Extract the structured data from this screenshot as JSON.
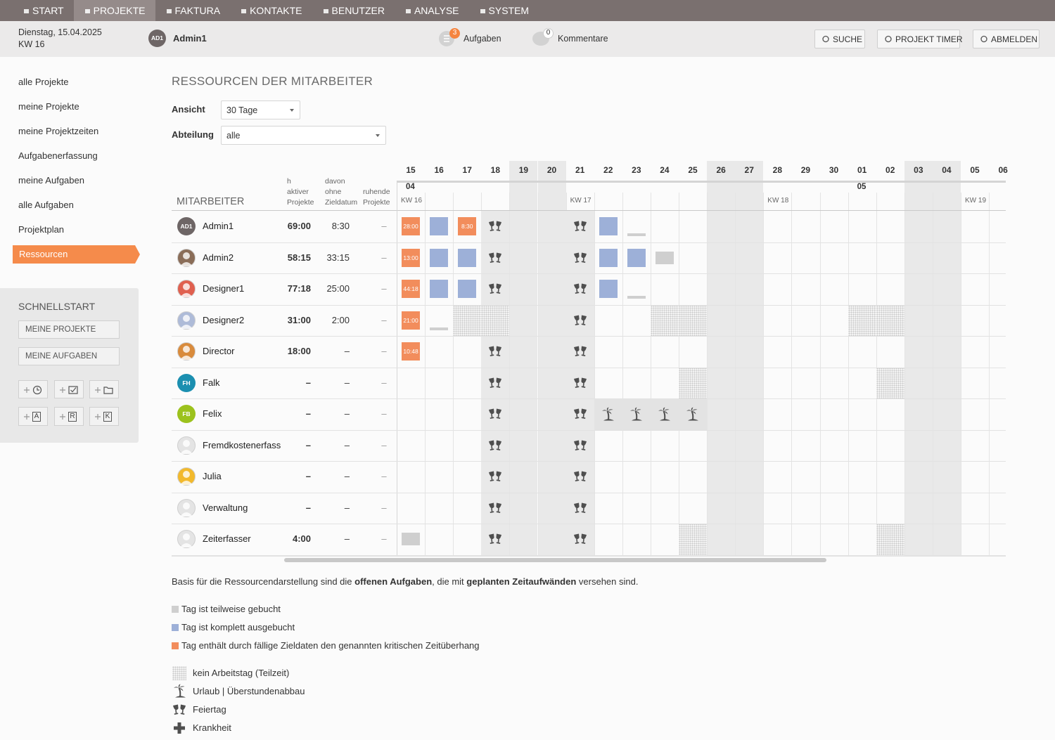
{
  "nav": {
    "items": [
      "START",
      "PROJEKTE",
      "FAKTURA",
      "KONTAKTE",
      "BENUTZER",
      "ANALYSE",
      "SYSTEM"
    ],
    "active": "PROJEKTE"
  },
  "header": {
    "date": "Dienstag, 15.04.2025",
    "week": "KW 16",
    "avatar": "AD1",
    "user": "Admin1",
    "tasks": {
      "count": 3,
      "label": "Aufgaben"
    },
    "comments": {
      "count": 0,
      "label": "Kommentare"
    },
    "buttons": [
      "SUCHE",
      "PROJEKT TIMER",
      "ABMELDEN"
    ]
  },
  "sidebar": {
    "links": [
      "alle Projekte",
      "meine Projekte",
      "meine Projektzeiten",
      "Aufgabenerfassung",
      "meine Aufgaben",
      "alle Aufgaben",
      "Projektplan",
      "Ressourcen"
    ],
    "active": "Ressourcen",
    "quickstart": {
      "title": "SCHNELLSTART",
      "buttons": [
        "MEINE PROJEKTE",
        "MEINE AUFGABEN"
      ],
      "letters": [
        "A",
        "R",
        "K"
      ]
    }
  },
  "main": {
    "title": "RESSOURCEN DER MITARBEITER",
    "filters": [
      {
        "label": "Ansicht",
        "value": "30 Tage"
      },
      {
        "label": "Abteilung",
        "value": "alle"
      }
    ],
    "table": {
      "employee_header": "MITARBEITER",
      "columns": [
        [
          "h",
          "aktiver",
          "Projekte"
        ],
        [
          "davon",
          "ohne",
          "Zieldatum"
        ],
        [
          "ruhende",
          "Projekte"
        ]
      ],
      "days": [
        {
          "d": "15",
          "off": false,
          "month": "04",
          "kw": "KW 16"
        },
        {
          "d": "16",
          "off": false
        },
        {
          "d": "17",
          "off": false
        },
        {
          "d": "18",
          "off": false
        },
        {
          "d": "19",
          "off": true
        },
        {
          "d": "20",
          "off": true
        },
        {
          "d": "21",
          "off": false,
          "kw": "KW 17"
        },
        {
          "d": "22",
          "off": false
        },
        {
          "d": "23",
          "off": false
        },
        {
          "d": "24",
          "off": false
        },
        {
          "d": "25",
          "off": false
        },
        {
          "d": "26",
          "off": true
        },
        {
          "d": "27",
          "off": true
        },
        {
          "d": "28",
          "off": false,
          "kw": "KW 18"
        },
        {
          "d": "29",
          "off": false
        },
        {
          "d": "30",
          "off": false
        },
        {
          "d": "01",
          "off": false,
          "month": "05"
        },
        {
          "d": "02",
          "off": false
        },
        {
          "d": "03",
          "off": true
        },
        {
          "d": "04",
          "off": true
        },
        {
          "d": "05",
          "off": false,
          "kw": "KW 19"
        },
        {
          "d": "06",
          "off": false
        }
      ],
      "rows": [
        {
          "name": "Admin1",
          "avatar": {
            "initials": "AD1",
            "color": "#6e6666"
          },
          "hours": "69:00",
          "no_deadline": "8:30",
          "dormant": "–",
          "cells": [
            {
              "kind": "critical",
              "label": "28:00"
            },
            "full",
            {
              "kind": "critical",
              "label": "8:30"
            },
            "holiday",
            null,
            null,
            "holiday",
            "full",
            "low",
            null,
            null,
            null,
            null,
            null,
            null,
            null,
            null,
            null,
            null,
            null,
            null,
            null
          ]
        },
        {
          "name": "Admin2",
          "avatar": {
            "color": "#8a6d58"
          },
          "hours": "58:15",
          "no_deadline": "33:15",
          "dormant": "–",
          "cells": [
            {
              "kind": "critical",
              "label": "13:00"
            },
            "full",
            "full",
            "holiday",
            null,
            null,
            "holiday",
            "full",
            "full",
            "partial",
            null,
            null,
            null,
            null,
            null,
            null,
            null,
            null,
            null,
            null,
            null,
            null
          ]
        },
        {
          "name": "Designer1",
          "avatar": {
            "color": "#e0604f"
          },
          "hours": "77:18",
          "no_deadline": "25:00",
          "dormant": "–",
          "cells": [
            {
              "kind": "critical",
              "label": "44:18"
            },
            "full",
            "full",
            "holiday",
            null,
            null,
            "holiday",
            "full",
            "low",
            null,
            null,
            null,
            null,
            null,
            null,
            null,
            null,
            null,
            null,
            null,
            null,
            null
          ]
        },
        {
          "name": "Designer2",
          "avatar": {
            "color": "#aebbd8"
          },
          "hours": "31:00",
          "no_deadline": "2:00",
          "dormant": "–",
          "cells": [
            {
              "kind": "critical",
              "label": "21:00"
            },
            "low",
            "nonworking",
            "nonworking",
            null,
            null,
            "holiday",
            null,
            null,
            "nonworking",
            "nonworking",
            null,
            null,
            null,
            null,
            null,
            "nonworking",
            "nonworking",
            null,
            null,
            null,
            null
          ]
        },
        {
          "name": "Director",
          "avatar": {
            "color": "#d98b3c"
          },
          "hours": "18:00",
          "no_deadline": "–",
          "dormant": "–",
          "cells": [
            {
              "kind": "critical",
              "label": "10:48"
            },
            null,
            null,
            "holiday",
            null,
            null,
            "holiday",
            null,
            null,
            null,
            null,
            null,
            null,
            null,
            null,
            null,
            null,
            null,
            null,
            null,
            null,
            null
          ]
        },
        {
          "name": "Falk",
          "avatar": {
            "initials": "FH",
            "color": "#1b8fb0"
          },
          "hours": "–",
          "no_deadline": "–",
          "dormant": "–",
          "cells": [
            null,
            null,
            null,
            "holiday",
            null,
            null,
            "holiday",
            null,
            null,
            null,
            "nonworking",
            null,
            null,
            null,
            null,
            null,
            null,
            "nonworking",
            null,
            null,
            null,
            null
          ]
        },
        {
          "name": "Felix",
          "avatar": {
            "initials": "FB",
            "color": "#9cc21d"
          },
          "hours": "–",
          "no_deadline": "–",
          "dormant": "–",
          "cells": [
            null,
            null,
            null,
            "holiday",
            null,
            null,
            "holiday",
            "vacation",
            "vacation",
            "vacation",
            "vacation",
            null,
            null,
            null,
            null,
            null,
            null,
            null,
            null,
            null,
            null,
            null
          ]
        },
        {
          "name": "Fremdkostenerfass",
          "avatar": {
            "color": "#e4e4e4"
          },
          "hours": "–",
          "no_deadline": "–",
          "dormant": "–",
          "cells": [
            null,
            null,
            null,
            "holiday",
            null,
            null,
            "holiday",
            null,
            null,
            null,
            null,
            null,
            null,
            null,
            null,
            null,
            null,
            null,
            null,
            null,
            null,
            null
          ]
        },
        {
          "name": "Julia",
          "avatar": {
            "color": "#f2b92c"
          },
          "hours": "–",
          "no_deadline": "–",
          "dormant": "–",
          "cells": [
            null,
            null,
            null,
            "holiday",
            null,
            null,
            "holiday",
            null,
            null,
            null,
            null,
            null,
            null,
            null,
            null,
            null,
            null,
            null,
            null,
            null,
            null,
            null
          ]
        },
        {
          "name": "Verwaltung",
          "avatar": {
            "color": "#e4e4e4"
          },
          "hours": "–",
          "no_deadline": "–",
          "dormant": "–",
          "cells": [
            null,
            null,
            null,
            "holiday",
            null,
            null,
            "holiday",
            null,
            null,
            null,
            null,
            null,
            null,
            null,
            null,
            null,
            null,
            null,
            null,
            null,
            null,
            null
          ]
        },
        {
          "name": "Zeiterfasser",
          "avatar": {
            "color": "#e4e4e4"
          },
          "hours": "4:00",
          "no_deadline": "–",
          "dormant": "–",
          "cells": [
            "partial",
            null,
            null,
            "holiday",
            null,
            null,
            "holiday",
            null,
            null,
            null,
            "nonworking",
            null,
            null,
            null,
            null,
            null,
            null,
            "nonworking",
            null,
            null,
            null,
            null
          ]
        }
      ]
    },
    "footnote": [
      {
        "text": "Basis für die Ressourcendarstellung sind die ",
        "bold": false
      },
      {
        "text": "offenen Aufgaben",
        "bold": true
      },
      {
        "text": ", die mit ",
        "bold": false
      },
      {
        "text": "geplanten Zeitaufwänden",
        "bold": true
      },
      {
        "text": " versehen sind.",
        "bold": false
      }
    ],
    "legend": {
      "squares": [
        {
          "kind": "partial",
          "color": "#cfcfcf",
          "text": "Tag ist teilweise gebucht"
        },
        {
          "kind": "full",
          "color": "#9db0d8",
          "text": "Tag ist komplett ausgebucht"
        },
        {
          "kind": "critical",
          "color": "#f28d5c",
          "text": "Tag enthält durch fällige Zieldaten den genannten kritischen Zeitüberhang"
        }
      ],
      "icons": [
        {
          "icon": "nonworking",
          "text": "kein Arbeitstag (Teilzeit)"
        },
        {
          "icon": "vacation",
          "text": "Urlaub | Überstundenabbau"
        },
        {
          "icon": "holiday",
          "text": "Feiertag"
        },
        {
          "icon": "sick",
          "text": "Krankheit"
        }
      ]
    }
  }
}
